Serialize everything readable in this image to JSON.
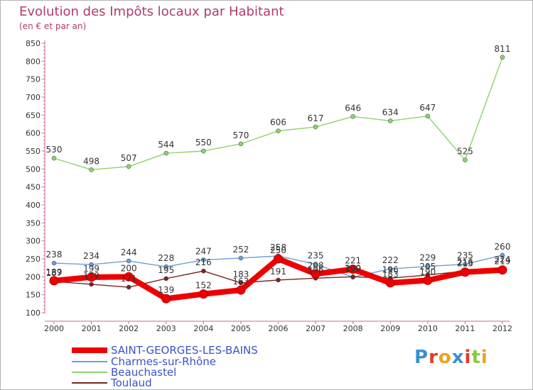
{
  "header": {
    "title": "Evolution des Impôts locaux par Habitant",
    "subtitle": "(en € et par an)"
  },
  "logo": {
    "text": "Proxiti"
  },
  "chart_data": {
    "type": "line",
    "title": "Evolution des Impôts locaux par Habitant",
    "subtitle": "(en € et par an)",
    "xlabel": "",
    "ylabel": "",
    "categories": [
      "2000",
      "2001",
      "2002",
      "2003",
      "2004",
      "2005",
      "2006",
      "2007",
      "2008",
      "2009",
      "2010",
      "2011",
      "2012"
    ],
    "ylim": [
      100,
      850
    ],
    "yticks": [
      100,
      150,
      200,
      250,
      300,
      350,
      400,
      450,
      500,
      550,
      600,
      650,
      700,
      750,
      800,
      850
    ],
    "grid": false,
    "legend_position": "bottom-left",
    "series": [
      {
        "name": "SAINT-GEORGES-LES-BAINS",
        "color": "#ee0000",
        "style": "thick",
        "values": [
          189,
          199,
          200,
          139,
          152,
          163,
          250,
          208,
          221,
          183,
          190,
          213,
          219
        ],
        "labels": [
          "189",
          "199",
          "200",
          "139",
          "152",
          "163",
          "250",
          "208",
          "221",
          "183",
          "190",
          "213",
          "219"
        ]
      },
      {
        "name": "Charmes-sur-Rhône",
        "color": "#6b9fd3",
        "style": "thin",
        "values": [
          238,
          234,
          244,
          228,
          247,
          252,
          258,
          235,
          199,
          222,
          229,
          235,
          260
        ],
        "labels": [
          "238",
          "234",
          "244",
          "228",
          "247",
          "252",
          "258",
          "235",
          "199",
          "222",
          "229",
          "235",
          "260"
        ]
      },
      {
        "name": "Beauchastel",
        "color": "#8fd16e",
        "style": "thin",
        "values": [
          530,
          498,
          507,
          544,
          550,
          570,
          606,
          617,
          646,
          634,
          647,
          525,
          811
        ],
        "labels": [
          "530",
          "498",
          "507",
          "544",
          "550",
          "570",
          "606",
          "617",
          "646",
          "634",
          "647",
          "525",
          "811"
        ]
      },
      {
        "name": "Toulaud",
        "color": "#7a2424",
        "style": "thin",
        "values": [
          187,
          179,
          171,
          195,
          216,
          183,
          191,
          196,
          200,
          196,
          205,
          216,
          224
        ],
        "labels": [
          "187",
          "179",
          "171",
          "195",
          "216",
          "183",
          "191",
          "196",
          "200",
          "196",
          "205",
          "216",
          "224"
        ]
      }
    ]
  }
}
